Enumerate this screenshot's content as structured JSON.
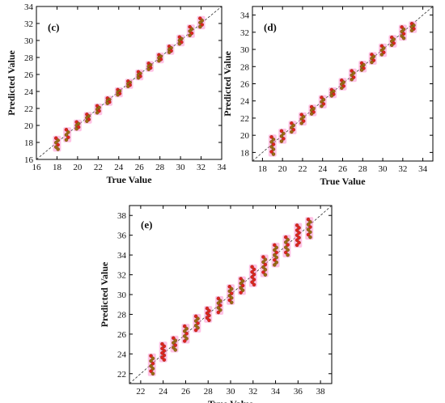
{
  "colors": {
    "pink": "#ff8fcf",
    "red": "#e02222",
    "brown": "#9a6a14",
    "outline": "#5a3a00"
  },
  "chart_data": [
    {
      "type": "scatter",
      "panel_label": "(c)",
      "xlabel": "True Value",
      "ylabel": "Predicted Value",
      "xlim": [
        16,
        34
      ],
      "ylim": [
        16,
        34
      ],
      "xticks": [
        16,
        18,
        20,
        22,
        24,
        26,
        28,
        30,
        32,
        34
      ],
      "yticks": [
        16,
        18,
        20,
        22,
        24,
        26,
        28,
        30,
        32,
        34
      ],
      "reference_line": "y = x (dashed)",
      "groups": [
        {
          "x": 18,
          "y_low": 17.2,
          "y_high": 18.5
        },
        {
          "x": 19,
          "y_low": 18.3,
          "y_high": 19.5
        },
        {
          "x": 20,
          "y_low": 19.6,
          "y_high": 20.4
        },
        {
          "x": 21,
          "y_low": 20.5,
          "y_high": 21.3
        },
        {
          "x": 22,
          "y_low": 21.5,
          "y_high": 22.3
        },
        {
          "x": 23,
          "y_low": 22.6,
          "y_high": 23.2
        },
        {
          "x": 24,
          "y_low": 23.6,
          "y_high": 24.2
        },
        {
          "x": 25,
          "y_low": 24.6,
          "y_high": 25.2
        },
        {
          "x": 26,
          "y_low": 25.6,
          "y_high": 26.3
        },
        {
          "x": 27,
          "y_low": 26.6,
          "y_high": 27.3
        },
        {
          "x": 28,
          "y_low": 27.6,
          "y_high": 28.3
        },
        {
          "x": 29,
          "y_low": 28.6,
          "y_high": 29.3
        },
        {
          "x": 30,
          "y_low": 29.6,
          "y_high": 30.4
        },
        {
          "x": 31,
          "y_low": 30.6,
          "y_high": 31.6
        },
        {
          "x": 32,
          "y_low": 31.6,
          "y_high": 32.6
        }
      ]
    },
    {
      "type": "scatter",
      "panel_label": "(d)",
      "xlabel": "True Value",
      "ylabel": "Predicted Value",
      "xlim": [
        17,
        35
      ],
      "ylim": [
        17,
        35
      ],
      "xticks": [
        18,
        20,
        22,
        24,
        26,
        28,
        30,
        32,
        34
      ],
      "yticks": [
        18,
        20,
        22,
        24,
        26,
        28,
        30,
        32,
        34
      ],
      "reference_line": "y = x (dashed)",
      "groups": [
        {
          "x": 19,
          "y_low": 17.8,
          "y_high": 19.8
        },
        {
          "x": 20,
          "y_low": 19.3,
          "y_high": 20.5
        },
        {
          "x": 21,
          "y_low": 20.4,
          "y_high": 21.4
        },
        {
          "x": 22,
          "y_low": 21.4,
          "y_high": 22.4
        },
        {
          "x": 23,
          "y_low": 22.5,
          "y_high": 23.3
        },
        {
          "x": 24,
          "y_low": 23.4,
          "y_high": 24.4
        },
        {
          "x": 25,
          "y_low": 24.6,
          "y_high": 25.3
        },
        {
          "x": 26,
          "y_low": 25.5,
          "y_high": 26.4
        },
        {
          "x": 27,
          "y_low": 26.5,
          "y_high": 27.5
        },
        {
          "x": 28,
          "y_low": 27.6,
          "y_high": 28.4
        },
        {
          "x": 29,
          "y_low": 28.5,
          "y_high": 29.4
        },
        {
          "x": 30,
          "y_low": 29.4,
          "y_high": 30.4
        },
        {
          "x": 31,
          "y_low": 30.5,
          "y_high": 31.4
        },
        {
          "x": 32,
          "y_low": 31.3,
          "y_high": 32.6
        },
        {
          "x": 33,
          "y_low": 32.2,
          "y_high": 33.0
        }
      ]
    },
    {
      "type": "scatter",
      "panel_label": "(e)",
      "xlabel": "True Value",
      "ylabel": "Predicted Value",
      "xlim": [
        21,
        39
      ],
      "ylim": [
        21,
        39
      ],
      "xticks": [
        22,
        24,
        26,
        28,
        30,
        32,
        34,
        36,
        38
      ],
      "yticks": [
        22,
        24,
        26,
        28,
        30,
        32,
        34,
        36,
        38
      ],
      "reference_line": "y = x (dashed)",
      "groups": [
        {
          "x": 23,
          "y_low": 22.0,
          "y_high": 23.8
        },
        {
          "x": 24,
          "y_low": 23.4,
          "y_high": 25.0
        },
        {
          "x": 25,
          "y_low": 24.4,
          "y_high": 25.6
        },
        {
          "x": 26,
          "y_low": 25.3,
          "y_high": 26.8
        },
        {
          "x": 27,
          "y_low": 26.4,
          "y_high": 27.8
        },
        {
          "x": 28,
          "y_low": 27.4,
          "y_high": 28.6
        },
        {
          "x": 29,
          "y_low": 28.2,
          "y_high": 29.6
        },
        {
          "x": 30,
          "y_low": 29.2,
          "y_high": 30.8
        },
        {
          "x": 31,
          "y_low": 30.2,
          "y_high": 31.6
        },
        {
          "x": 32,
          "y_low": 31.0,
          "y_high": 32.8
        },
        {
          "x": 33,
          "y_low": 32.0,
          "y_high": 33.8
        },
        {
          "x": 34,
          "y_low": 33.0,
          "y_high": 35.0
        },
        {
          "x": 35,
          "y_low": 34.0,
          "y_high": 35.8
        },
        {
          "x": 36,
          "y_low": 35.0,
          "y_high": 37.0
        },
        {
          "x": 37,
          "y_low": 35.8,
          "y_high": 37.6
        }
      ]
    }
  ]
}
